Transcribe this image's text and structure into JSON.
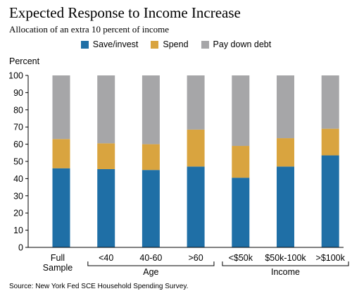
{
  "title": "Expected Response to Income Increase",
  "subtitle": "Allocation  of an extra 10 percent of income",
  "source": "Source: New York Fed SCE Household Spending Survey.",
  "colors": {
    "save": "#1f6fa6",
    "spend": "#d9a43f",
    "debt": "#a6a6a8"
  },
  "chart_data": {
    "type": "bar",
    "stacked": true,
    "ylabel": "Percent",
    "ylim": [
      0,
      100
    ],
    "yticks": [
      0,
      10,
      20,
      30,
      40,
      50,
      60,
      70,
      80,
      90,
      100
    ],
    "grid": false,
    "legend_position": "top-center",
    "categories": [
      "Full Sample",
      "<40",
      "40-60",
      ">60",
      "<$50k",
      "$50k-100k",
      ">$100k"
    ],
    "groups": [
      {
        "label": "Age",
        "categories": [
          "<40",
          "40-60",
          ">60"
        ]
      },
      {
        "label": "Income",
        "categories": [
          "<$50k",
          "$50k-100k",
          ">$100k"
        ]
      }
    ],
    "series": [
      {
        "name": "Save/invest",
        "values": [
          46,
          45.5,
          45,
          47,
          40.5,
          47,
          53.5
        ]
      },
      {
        "name": "Spend",
        "values": [
          17,
          15,
          15,
          21.5,
          18.5,
          16.5,
          15.5
        ]
      },
      {
        "name": "Pay down debt",
        "values": [
          37,
          39.5,
          40,
          31.5,
          41,
          36.5,
          31
        ]
      }
    ]
  }
}
